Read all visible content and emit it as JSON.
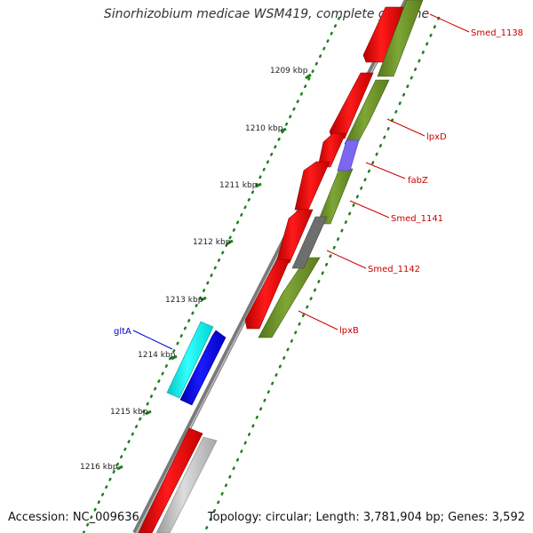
{
  "title": "Sinorhizobium medicae WSM419, complete genome",
  "footer": {
    "accession": "Accession: NC_009636",
    "summary": "Topology: circular; Length: 3,781,904 bp; Genes: 3,592"
  },
  "colors": {
    "forward_gene": "#ff0000",
    "reverse_gene": "#6b8e23",
    "fabZ_gene": "#7b68ee",
    "smed1142_gene": "#6e6e6e",
    "rna_gene": "#00ffff",
    "other_gene": "#0000ee",
    "pseudo_gene": "#c8c8c8",
    "backbone": "#808080",
    "red_label": "#cc0000",
    "blue_label": "#0000cc",
    "tick": "#1f7f1f"
  },
  "kbp_ticks": [
    "1209 kbp",
    "1210 kbp",
    "1211 kbp",
    "1212 kbp",
    "1213 kbp",
    "1214 kbp",
    "1215 kbp",
    "1216 kbp"
  ],
  "gene_labels": [
    {
      "id": "smed1138",
      "text": "Smed_1138",
      "color": "red"
    },
    {
      "id": "lpxd",
      "text": "lpxD",
      "color": "red"
    },
    {
      "id": "fabz",
      "text": "fabZ",
      "color": "red"
    },
    {
      "id": "smed1141",
      "text": "Smed_1141",
      "color": "red"
    },
    {
      "id": "smed1142",
      "text": "Smed_1142",
      "color": "red"
    },
    {
      "id": "lpxb",
      "text": "lpxB",
      "color": "red"
    },
    {
      "id": "glta",
      "text": "gltA",
      "color": "blue"
    }
  ]
}
